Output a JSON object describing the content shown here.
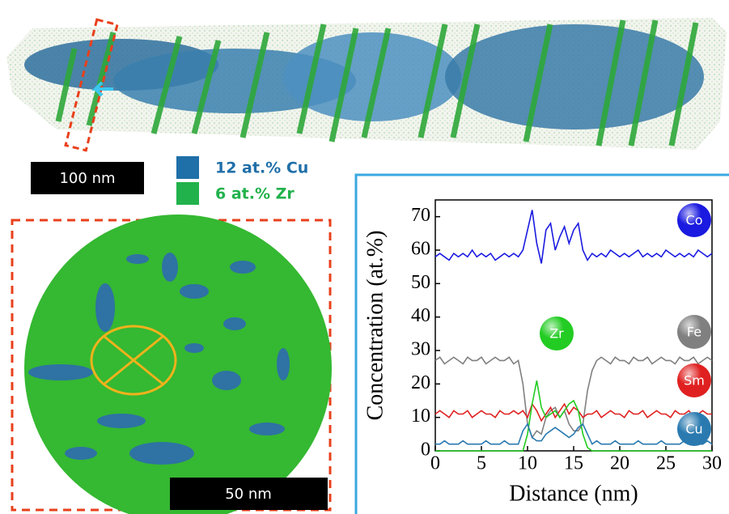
{
  "figure": {
    "scale_bar_top": "100 nm",
    "legend": [
      {
        "label": "12 at.% Cu",
        "color": "#1f6fa8"
      },
      {
        "label": "6  at.% Zr",
        "color": "#22b24c"
      }
    ],
    "scale_bar_bottom": "50 nm"
  },
  "chart_data": {
    "type": "line",
    "xlabel": "Distance (nm)",
    "ylabel": "Concentration (at.%)",
    "xlim": [
      0,
      30
    ],
    "ylim": [
      0,
      75
    ],
    "xticks": [
      0,
      5,
      10,
      15,
      20,
      25,
      30
    ],
    "yticks": [
      0,
      10,
      20,
      30,
      40,
      50,
      60,
      70
    ],
    "x": [
      0,
      0.5,
      1,
      1.5,
      2,
      2.5,
      3,
      3.5,
      4,
      4.5,
      5,
      5.5,
      6,
      6.5,
      7,
      7.5,
      8,
      8.5,
      9,
      9.5,
      10,
      10.5,
      11,
      11.5,
      12,
      12.5,
      13,
      13.5,
      14,
      14.5,
      15,
      15.5,
      16,
      16.5,
      17,
      17.5,
      18,
      18.5,
      19,
      19.5,
      20,
      20.5,
      21,
      21.5,
      22,
      22.5,
      23,
      23.5,
      24,
      24.5,
      25,
      25.5,
      26,
      26.5,
      27,
      27.5,
      28,
      28.5,
      29,
      29.5,
      30
    ],
    "series": [
      {
        "name": "Co",
        "color": "#1a1ae0",
        "values": [
          58,
          59,
          58,
          57,
          59,
          58,
          59,
          58,
          60,
          58,
          59,
          58,
          59,
          57,
          58,
          59,
          58,
          59,
          58,
          60,
          66,
          72,
          62,
          56,
          66,
          68,
          60,
          64,
          67,
          62,
          66,
          68,
          60,
          57,
          59,
          58,
          59,
          58,
          60,
          59,
          58,
          59,
          58,
          59,
          60,
          58,
          59,
          58,
          59,
          58,
          60,
          59,
          58,
          59,
          58,
          59,
          58,
          60,
          59,
          58,
          59
        ]
      },
      {
        "name": "Fe",
        "color": "#808080",
        "values": [
          27,
          28,
          26,
          27,
          28,
          27,
          26,
          28,
          27,
          27,
          28,
          26,
          27,
          28,
          27,
          27,
          28,
          26,
          27,
          20,
          8,
          4,
          6,
          5,
          10,
          12,
          13,
          10,
          12,
          8,
          6,
          6,
          8,
          18,
          24,
          27,
          28,
          27,
          26,
          28,
          27,
          27,
          26,
          28,
          27,
          27,
          28,
          26,
          27,
          28,
          27,
          27,
          26,
          28,
          27,
          27,
          28,
          26,
          27,
          28,
          27
        ]
      },
      {
        "name": "Sm",
        "color": "#e02020",
        "values": [
          11,
          12,
          11,
          10,
          12,
          11,
          11,
          12,
          10,
          11,
          12,
          11,
          11,
          10,
          12,
          11,
          11,
          12,
          11,
          12,
          10,
          14,
          12,
          9,
          11,
          13,
          10,
          12,
          14,
          11,
          13,
          12,
          10,
          11,
          11,
          12,
          10,
          11,
          12,
          11,
          11,
          10,
          12,
          11,
          11,
          12,
          10,
          11,
          12,
          11,
          11,
          10,
          12,
          11,
          11,
          12,
          10,
          11,
          12,
          11,
          11
        ]
      },
      {
        "name": "Zr",
        "color": "#22cc22",
        "values": [
          0,
          0,
          0,
          0,
          0,
          0,
          0,
          0,
          0,
          0,
          0,
          0,
          0,
          0,
          0,
          0,
          0,
          0,
          0,
          0,
          5,
          14,
          21,
          13,
          10,
          11,
          12,
          10,
          12,
          14,
          15,
          12,
          5,
          1,
          0,
          0,
          0,
          0,
          0,
          0,
          0,
          0,
          0,
          0,
          0,
          0,
          0,
          0,
          0,
          0,
          0,
          0,
          0,
          0,
          0,
          0,
          0,
          0,
          0,
          0,
          0
        ]
      },
      {
        "name": "Cu",
        "color": "#2a7ab0",
        "values": [
          2,
          2,
          3,
          2,
          2,
          2,
          3,
          2,
          2,
          2,
          2,
          3,
          2,
          2,
          2,
          3,
          2,
          2,
          2,
          6,
          8,
          4,
          3,
          3,
          5,
          6,
          7,
          6,
          5,
          4,
          5,
          7,
          8,
          5,
          2,
          3,
          2,
          2,
          2,
          3,
          2,
          2,
          2,
          2,
          3,
          2,
          2,
          2,
          2,
          3,
          2,
          2,
          2,
          2,
          3,
          2,
          2,
          2,
          2,
          3,
          2
        ]
      }
    ]
  }
}
